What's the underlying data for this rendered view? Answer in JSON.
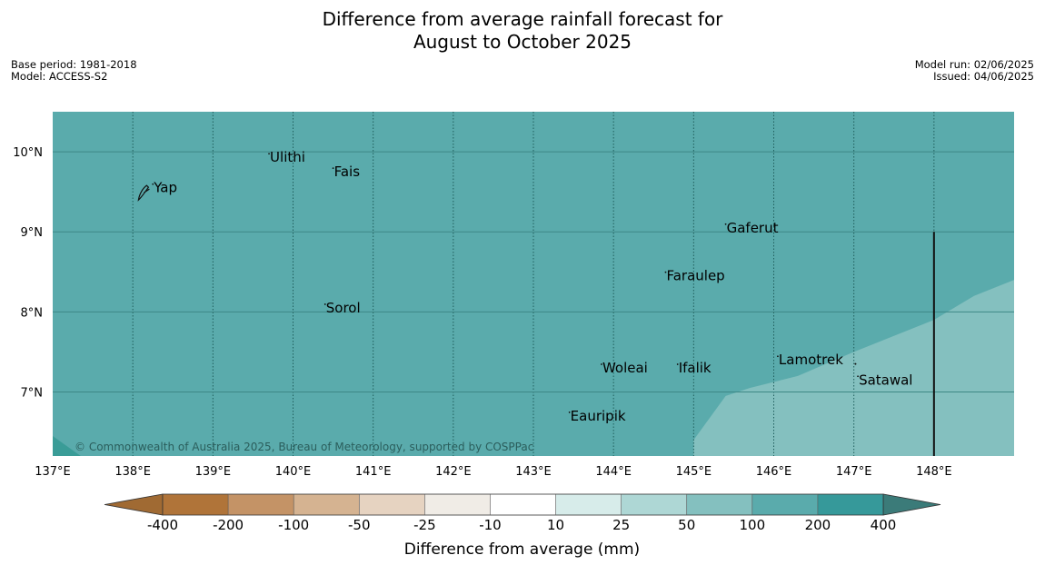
{
  "title": {
    "line1": "Difference from average rainfall forecast for",
    "line2": "August to October 2025"
  },
  "meta_left": {
    "base_period": "Base period: 1981-2018",
    "model": "Model: ACCESS-S2"
  },
  "meta_right": {
    "model_run": "Model run: 02/06/2025",
    "issued": "Issued: 04/06/2025"
  },
  "map": {
    "lon_range": [
      137,
      149
    ],
    "lat_range": [
      6.2,
      10.5
    ],
    "x_ticks": [
      "137°E",
      "138°E",
      "139°E",
      "140°E",
      "141°E",
      "142°E",
      "143°E",
      "144°E",
      "145°E",
      "146°E",
      "147°E",
      "148°E"
    ],
    "y_ticks": [
      "7°N",
      "8°N",
      "9°N",
      "10°N"
    ],
    "places": [
      {
        "name": "Yap",
        "lon": 138.25,
        "lat": 9.55
      },
      {
        "name": "Ulithi",
        "lon": 139.7,
        "lat": 9.93
      },
      {
        "name": "Fais",
        "lon": 140.5,
        "lat": 9.75
      },
      {
        "name": "Gaferut",
        "lon": 145.4,
        "lat": 9.05
      },
      {
        "name": "Faraulep",
        "lon": 144.65,
        "lat": 8.45
      },
      {
        "name": "Sorol",
        "lon": 140.4,
        "lat": 8.05
      },
      {
        "name": "Lamotrek",
        "lon": 146.05,
        "lat": 7.4
      },
      {
        "name": "Satawal",
        "lon": 147.05,
        "lat": 7.15
      },
      {
        "name": "Woleai",
        "lon": 143.85,
        "lat": 7.3
      },
      {
        "name": "Ifalik",
        "lon": 144.8,
        "lat": 7.3
      },
      {
        "name": "Eauripik",
        "lon": 143.45,
        "lat": 6.7
      }
    ],
    "boundary_line_lon": 148,
    "boundary_line_lat_top": 9,
    "copyright": "© Commonwealth of Australia 2025, Bureau of Meteorology, supported by COSPPac",
    "fill_main_category": "100 to 200",
    "fill_main_color": "#5aabac",
    "fill_secondary_category": "50 to 100",
    "fill_secondary_color": "#84c0bf",
    "fill_corner_color": "#3a9c97"
  },
  "colorbar": {
    "title": "Difference from average (mm)",
    "boundaries": [
      "-400",
      "-200",
      "-100",
      "-50",
      "-25",
      "-10",
      "10",
      "25",
      "50",
      "100",
      "200",
      "400"
    ],
    "colors": [
      "#b07439",
      "#c49366",
      "#d5b391",
      "#e6d3c1",
      "#f0ece6",
      "#ffffff",
      "#d7ecea",
      "#aed7d5",
      "#84c0bf",
      "#5aabac",
      "#36999a"
    ],
    "under_color": "#a06a33",
    "over_color": "#3b7b79"
  }
}
